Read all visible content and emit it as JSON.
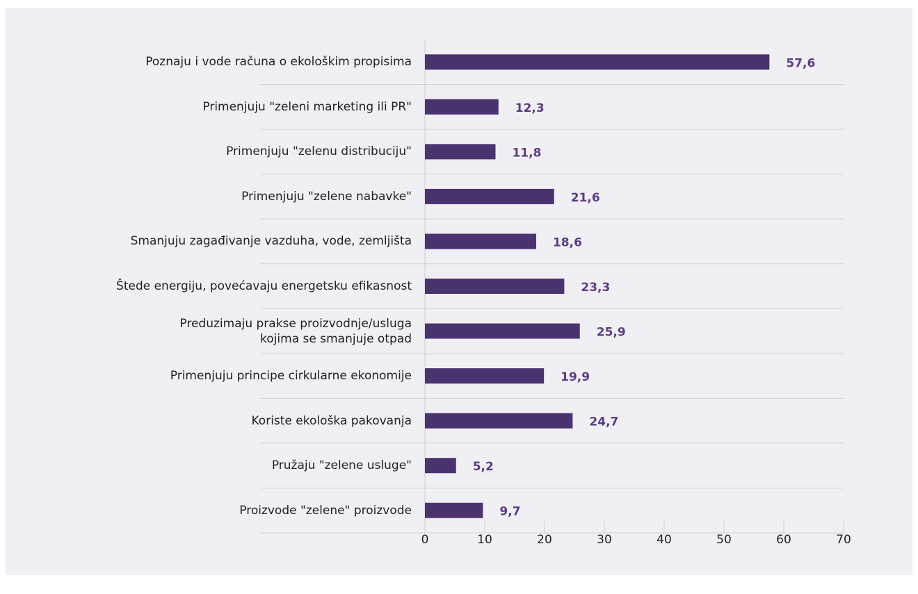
{
  "chart_data": {
    "type": "bar",
    "orientation": "horizontal",
    "categories": [
      "Poznaju i vode računa o ekološkim propisima",
      "Primenjuju \"zeleni marketing ili PR\"",
      "Primenjuju \"zelenu distribuciju\"",
      "Primenjuju \"zelene nabavke\"",
      "Smanjuju zagađivanje vazduha, vode, zemljišta",
      "Štede energiju, povećavaju energetsku efikasnost",
      "Preduzimaju prakse proizvodnje/usluga\nkojima se smanjuje otpad",
      "Primenjuju principe cirkularne ekonomije",
      "Koriste ekološka pakovanja",
      "Pružaju \"zelene usluge\"",
      "Proizvode \"zelene\" proizvode"
    ],
    "values": [
      57.6,
      12.3,
      11.8,
      21.6,
      18.6,
      23.3,
      25.9,
      19.9,
      24.7,
      5.2,
      9.7
    ],
    "value_labels": [
      "57,6",
      "12,3",
      "11,8",
      "21,6",
      "18,6",
      "23,3",
      "25,9",
      "19,9",
      "24,7",
      "5,2",
      "9,7"
    ],
    "color": "#4b3370",
    "xlim": [
      0,
      70
    ],
    "xticks": [
      0,
      10,
      20,
      30,
      40,
      50,
      60,
      70
    ]
  }
}
